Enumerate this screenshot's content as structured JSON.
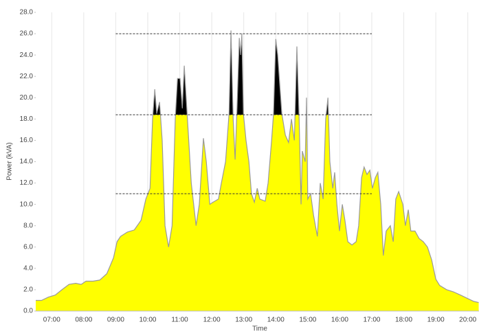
{
  "chart_data": {
    "type": "area",
    "x_label": "Time",
    "y_label": "Power (kVA)",
    "x": [
      6.5,
      6.68,
      6.89,
      7.11,
      7.32,
      7.54,
      7.75,
      7.92,
      8.07,
      8.29,
      8.5,
      8.72,
      8.82,
      8.93,
      9.04,
      9.15,
      9.36,
      9.58,
      9.79,
      9.94,
      10.07,
      10.15,
      10.22,
      10.28,
      10.37,
      10.45,
      10.54,
      10.65,
      10.76,
      10.86,
      10.93,
      11.01,
      11.08,
      11.14,
      11.23,
      11.36,
      11.51,
      11.61,
      11.74,
      11.83,
      11.94,
      12.04,
      12.21,
      12.3,
      12.43,
      12.54,
      12.6,
      12.67,
      12.73,
      12.79,
      12.86,
      12.9,
      12.94,
      12.99,
      13.07,
      13.16,
      13.24,
      13.33,
      13.42,
      13.5,
      13.67,
      13.76,
      13.87,
      13.93,
      14.0,
      14.06,
      14.19,
      14.3,
      14.4,
      14.49,
      14.58,
      14.66,
      14.73,
      14.79,
      14.83,
      14.92,
      14.96,
      15.0,
      15.09,
      15.18,
      15.3,
      15.39,
      15.48,
      15.56,
      15.63,
      15.69,
      15.78,
      15.84,
      15.91,
      15.99,
      16.08,
      16.16,
      16.25,
      16.38,
      16.51,
      16.59,
      16.68,
      16.76,
      16.85,
      16.94,
      17.02,
      17.11,
      17.19,
      17.28,
      17.36,
      17.45,
      17.58,
      17.67,
      17.75,
      17.84,
      17.97,
      18.05,
      18.14,
      18.22,
      18.35,
      18.48,
      18.61,
      18.74,
      18.87,
      19.0,
      19.12,
      19.34,
      19.55,
      19.77,
      19.98,
      20.19,
      20.34
    ],
    "values": [
      1.0,
      1.0,
      1.3,
      1.5,
      2.0,
      2.5,
      2.6,
      2.5,
      2.8,
      2.8,
      2.9,
      3.5,
      4.2,
      5.0,
      6.5,
      7.0,
      7.4,
      7.6,
      8.5,
      10.5,
      11.5,
      18.0,
      20.8,
      18.5,
      19.6,
      16.0,
      8.0,
      6.0,
      8.0,
      18.0,
      21.8,
      21.8,
      19.0,
      23.0,
      18.5,
      12.0,
      8.0,
      10.0,
      16.2,
      14.0,
      10.0,
      10.2,
      10.5,
      12.0,
      14.0,
      18.5,
      26.3,
      18.0,
      14.2,
      19.0,
      25.6,
      24.0,
      26.0,
      18.5,
      16.0,
      14.0,
      11.0,
      10.2,
      11.5,
      10.5,
      10.3,
      12.0,
      16.0,
      18.5,
      25.5,
      24.0,
      18.5,
      16.5,
      15.8,
      18.0,
      16.0,
      24.8,
      18.0,
      10.0,
      15.0,
      14.0,
      20.0,
      10.5,
      11.0,
      9.0,
      7.0,
      12.0,
      10.5,
      18.0,
      20.0,
      14.0,
      11.5,
      13.0,
      10.0,
      7.5,
      10.0,
      8.5,
      6.5,
      6.2,
      6.5,
      8.0,
      12.5,
      13.5,
      12.8,
      13.2,
      11.5,
      12.5,
      13.0,
      10.0,
      5.2,
      7.5,
      8.0,
      6.5,
      10.5,
      11.2,
      10.0,
      8.0,
      9.5,
      7.5,
      7.5,
      6.8,
      6.5,
      6.0,
      4.8,
      3.0,
      2.4,
      2.0,
      1.8,
      1.5,
      1.2,
      0.9,
      0.8
    ],
    "color": "#ffff00",
    "line_color": "#999999",
    "highlight_above": 18.4,
    "highlight_color": "#000000",
    "reference_lines": [
      {
        "y": 11,
        "x": [
          9,
          17
        ]
      },
      {
        "y": 18.4,
        "x": [
          9,
          17
        ]
      },
      {
        "y": 26,
        "x": [
          9,
          17
        ]
      }
    ],
    "xlim": [
      6.5,
      20.35
    ],
    "xticks": [
      {
        "value": 7,
        "label": "07:00"
      },
      {
        "value": 8,
        "label": "08:00"
      },
      {
        "value": 9,
        "label": "09:00"
      },
      {
        "value": 10,
        "label": "10:00"
      },
      {
        "value": 11,
        "label": "11:00"
      },
      {
        "value": 12,
        "label": "12:00"
      },
      {
        "value": 13,
        "label": "13:00"
      },
      {
        "value": 14,
        "label": "14:00"
      },
      {
        "value": 15,
        "label": "15:00"
      },
      {
        "value": 16,
        "label": "16:00"
      },
      {
        "value": 17,
        "label": "17:00"
      },
      {
        "value": 18,
        "label": "18:00"
      },
      {
        "value": 19,
        "label": "19:00"
      },
      {
        "value": 20,
        "label": "20:00"
      }
    ],
    "ylim": [
      0,
      28
    ],
    "yticks": [
      {
        "value": 0,
        "label": "0.0"
      },
      {
        "value": 2,
        "label": "2.0"
      },
      {
        "value": 4,
        "label": "4.0"
      },
      {
        "value": 6,
        "label": "6.0"
      },
      {
        "value": 8,
        "label": "8.0"
      },
      {
        "value": 10,
        "label": "10.0"
      },
      {
        "value": 12,
        "label": "12.0"
      },
      {
        "value": 14,
        "label": "14.0"
      },
      {
        "value": 16,
        "label": "16.0"
      },
      {
        "value": 18,
        "label": "18.0"
      },
      {
        "value": 20,
        "label": "20.0"
      },
      {
        "value": 22,
        "label": "22.0"
      },
      {
        "value": 24,
        "label": "24.0"
      },
      {
        "value": 26,
        "label": "26.0"
      },
      {
        "value": 28,
        "label": "28.0"
      }
    ],
    "grid": "x"
  }
}
